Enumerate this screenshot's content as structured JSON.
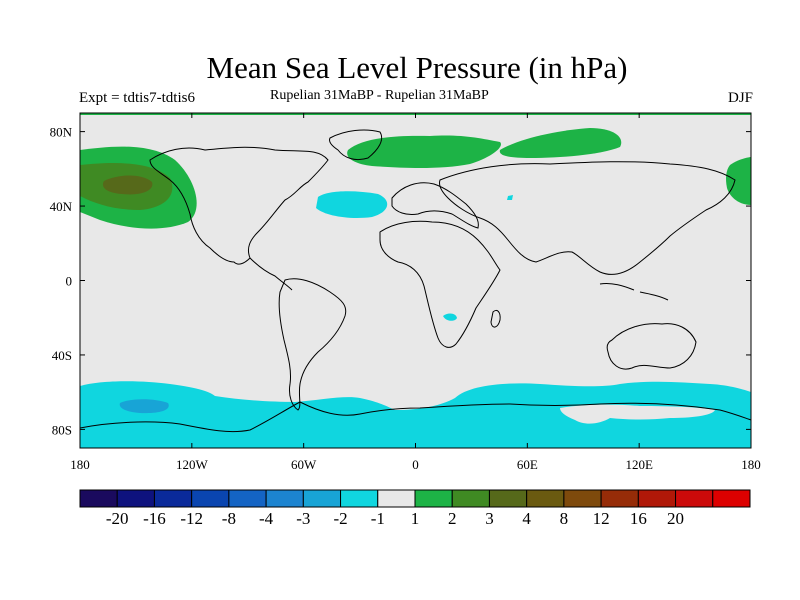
{
  "title": "Mean Sea Level Pressure (in hPa)",
  "experiment": "Expt = tdtis7-tdtis6",
  "subtitle": "Rupelian  31MaBP - Rupelian  31MaBP",
  "season": "DJF",
  "lat_labels": [
    "80N",
    "40N",
    "0",
    "40S",
    "80S"
  ],
  "lon_labels": [
    "180",
    "120W",
    "60W",
    "0",
    "60E",
    "120E",
    "180"
  ],
  "colorbar": {
    "colors": [
      "#1a0a5e",
      "#0e127e",
      "#0a2a9a",
      "#0a45b0",
      "#1464c4",
      "#1c84d0",
      "#18a4d6",
      "#10d6df",
      "#e8e8e8",
      "#1db346",
      "#3f8a23",
      "#56691a",
      "#6a5a10",
      "#7e4a0c",
      "#962c08",
      "#b01808",
      "#cc0a0a",
      "#dd0000"
    ],
    "labels": [
      "-20",
      "-16",
      "-12",
      "-8",
      "-4",
      "-3",
      "-2",
      "-1",
      "1",
      "2",
      "3",
      "4",
      "8",
      "12",
      "16",
      "20"
    ]
  },
  "palette": {
    "land_ocean": "#e8e8e8",
    "low1": "#10d6df",
    "low2": "#18a4d6",
    "high2": "#1db346",
    "high3": "#3f8a23",
    "high4": "#56691a"
  }
}
